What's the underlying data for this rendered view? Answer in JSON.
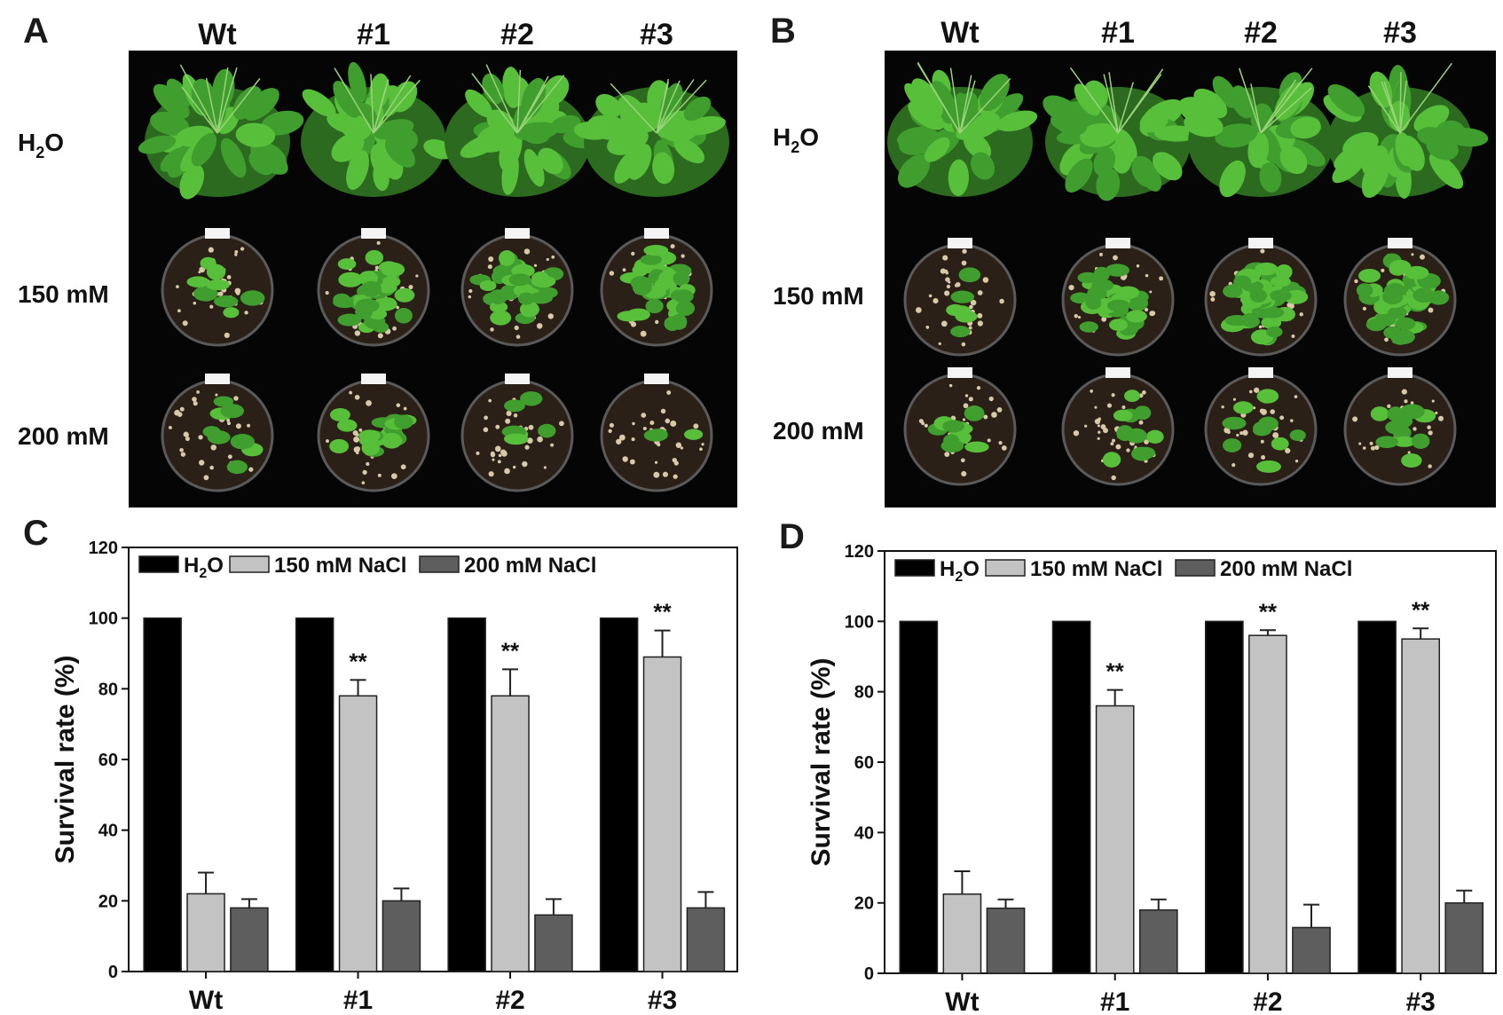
{
  "panels": {
    "a": {
      "letter": "A",
      "genotypes": [
        "Wt",
        "#1",
        "#2",
        "#3"
      ],
      "rows": [
        "H",
        "150 mM",
        "200 mM"
      ]
    },
    "b": {
      "letter": "B",
      "genotypes": [
        "Wt",
        "#1",
        "#2",
        "#3"
      ],
      "rows": [
        "H",
        "150 mM",
        "200 mM"
      ]
    }
  },
  "h2o_sub": "2",
  "h2o_tail": "O",
  "colors": {
    "h2o": "#000000",
    "nacl150": "#c3c3c3",
    "nacl200": "#5e5e5e",
    "soil": "#2b2017",
    "leaf": "#3f9e2e",
    "leaf_light": "#58bf3a"
  },
  "chart_data": [
    {
      "type": "bar",
      "letter": "C",
      "categories": [
        "Wt",
        "#1",
        "#2",
        "#3"
      ],
      "ylabel": "Survival rate (%)",
      "ylim": [
        0,
        120
      ],
      "yticks": [
        0,
        20,
        40,
        60,
        80,
        100,
        120
      ],
      "legend": "top-left",
      "series": [
        {
          "name": "H2O",
          "values": [
            100,
            100,
            100,
            100
          ],
          "errors": [
            0,
            0,
            0,
            0
          ]
        },
        {
          "name": "150 mM NaCl",
          "values": [
            22,
            78,
            78,
            89
          ],
          "errors": [
            6,
            4.5,
            7.5,
            7.5
          ]
        },
        {
          "name": "200 mM NaCl",
          "values": [
            18,
            20,
            16,
            18
          ],
          "errors": [
            2.5,
            3.5,
            4.5,
            4.5
          ]
        }
      ],
      "significance": [
        "",
        "**",
        "**",
        "**"
      ]
    },
    {
      "type": "bar",
      "letter": "D",
      "categories": [
        "Wt",
        "#1",
        "#2",
        "#3"
      ],
      "ylabel": "Survival rate (%)",
      "ylim": [
        0,
        120
      ],
      "yticks": [
        0,
        20,
        40,
        60,
        80,
        100,
        120
      ],
      "legend": "top-left",
      "series": [
        {
          "name": "H2O",
          "values": [
            100,
            100,
            100,
            100
          ],
          "errors": [
            0,
            0,
            0,
            0
          ]
        },
        {
          "name": "150 mM NaCl",
          "values": [
            22.5,
            76,
            96,
            95
          ],
          "errors": [
            6.5,
            4.5,
            1.5,
            3
          ]
        },
        {
          "name": "200 mM NaCl",
          "values": [
            18.5,
            18,
            13,
            20
          ],
          "errors": [
            2.5,
            3,
            6.5,
            3.5
          ]
        }
      ],
      "significance": [
        "",
        "**",
        "**",
        "**"
      ]
    }
  ]
}
